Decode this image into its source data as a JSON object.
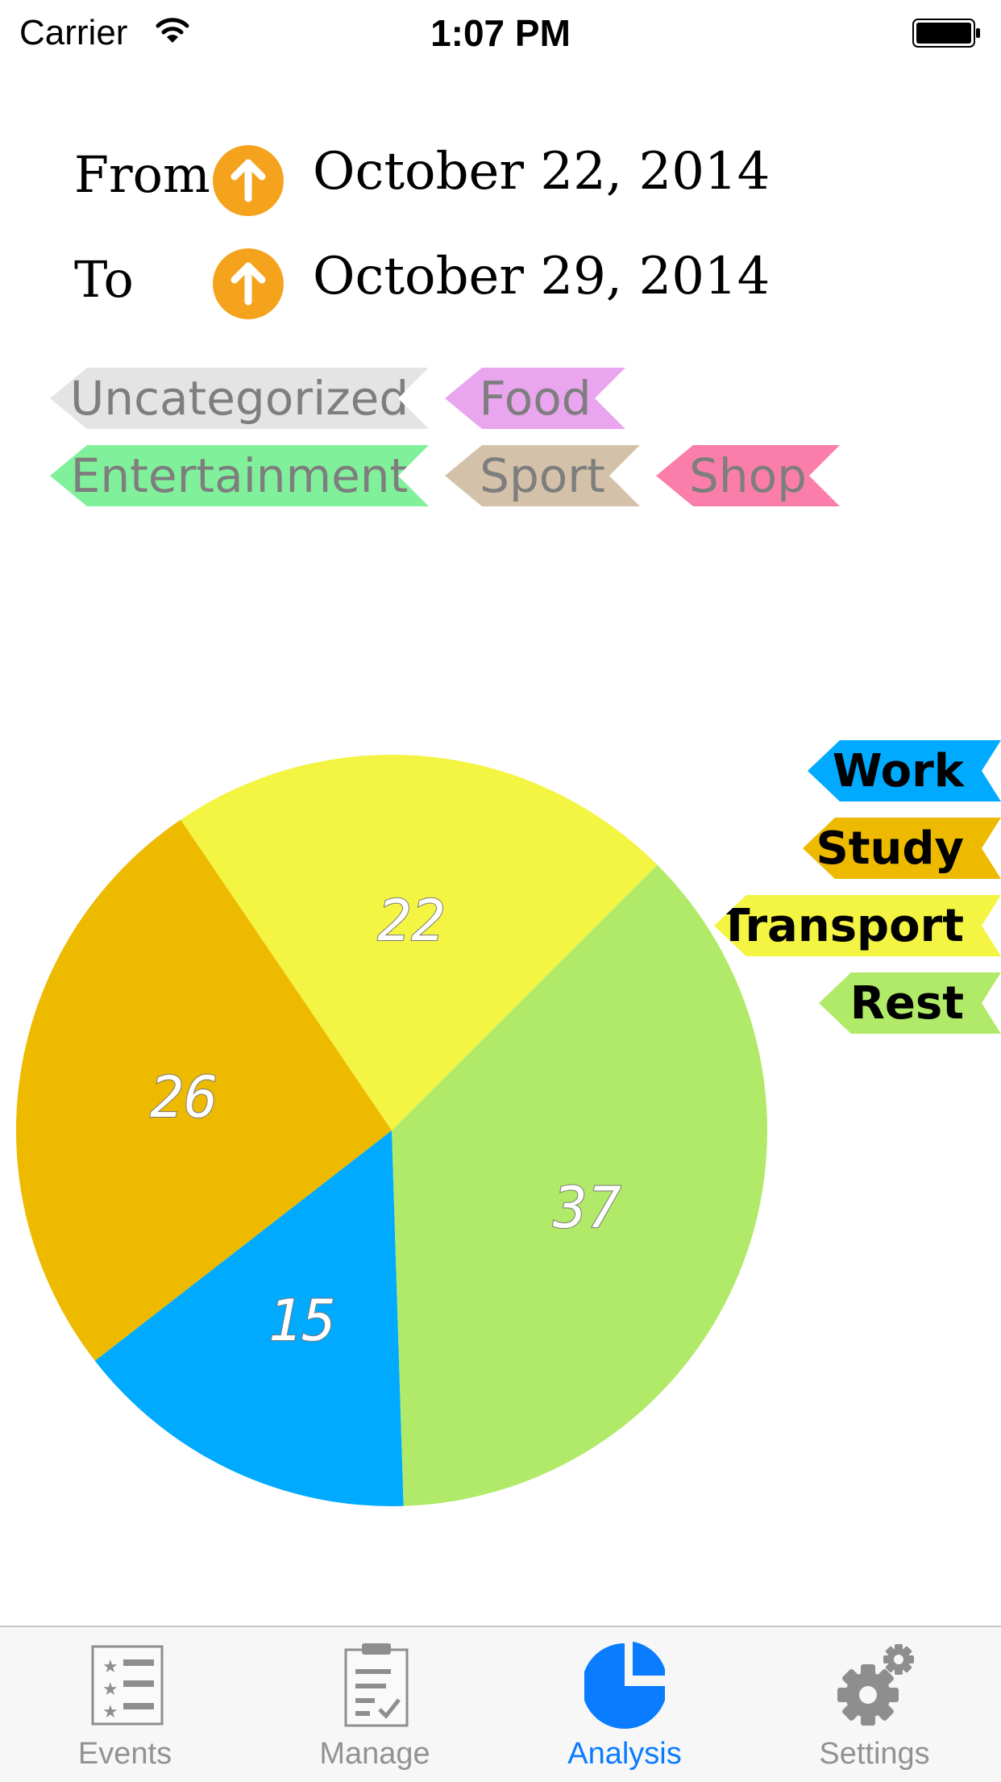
{
  "status_bar": {
    "carrier": "Carrier",
    "time": "1:07 PM"
  },
  "date_range": {
    "from_label": "From",
    "from_date": "October 22, 2014",
    "to_label": "To",
    "to_date": "October 29, 2014"
  },
  "filter_tags": [
    {
      "label": "Uncategorized",
      "color": "#e4e4e4"
    },
    {
      "label": "Food",
      "color": "#e9a5ee"
    },
    {
      "label": "Entertainment",
      "color": "#80f09a"
    },
    {
      "label": "Sport",
      "color": "#d4c1a9"
    },
    {
      "label": "Shop",
      "color": "#fb7eaa"
    }
  ],
  "chart_data": {
    "type": "pie",
    "series": [
      {
        "name": "Transport",
        "value": 22,
        "color": "#f4f442"
      },
      {
        "name": "Rest",
        "value": 37,
        "color": "#b0ea68"
      },
      {
        "name": "Work",
        "value": 15,
        "color": "#00aaff"
      },
      {
        "name": "Study",
        "value": 26,
        "color": "#edba00"
      }
    ],
    "legend": [
      {
        "label": "Work",
        "color": "#00aaff"
      },
      {
        "label": "Study",
        "color": "#edba00"
      },
      {
        "label": "Transport",
        "color": "#f4f442"
      },
      {
        "label": "Rest",
        "color": "#b0ea68"
      }
    ],
    "legend_position": "right"
  },
  "tab_bar": {
    "tabs": [
      {
        "label": "Events",
        "icon": "list-icon",
        "active": false
      },
      {
        "label": "Manage",
        "icon": "clipboard-icon",
        "active": false
      },
      {
        "label": "Analysis",
        "icon": "pie-chart-icon",
        "active": true
      },
      {
        "label": "Settings",
        "icon": "gear-icon",
        "active": false
      }
    ],
    "active_color": "#0a7cff",
    "inactive_color": "#929292"
  }
}
